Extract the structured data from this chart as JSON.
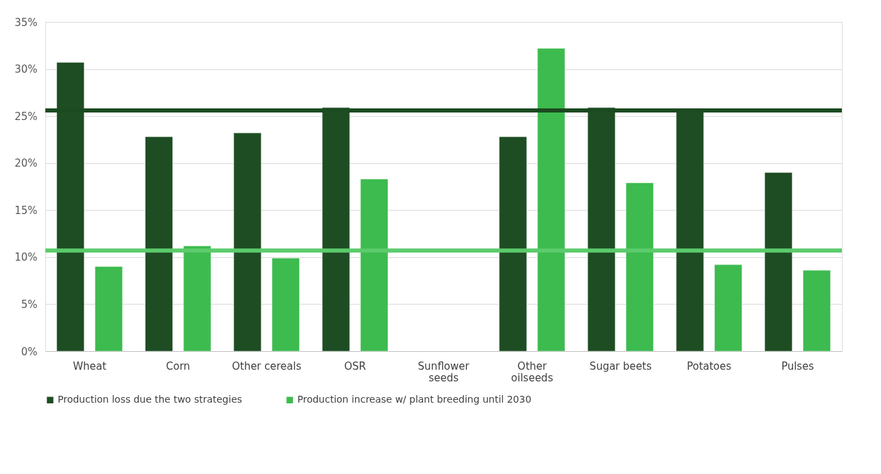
{
  "chart_data": {
    "type": "bar",
    "categories": [
      "Wheat",
      "Corn",
      "Other cereals",
      "OSR",
      "Sunflower seeds",
      "Other oilseeds",
      "Sugar beets",
      "Potatoes",
      "Pulses"
    ],
    "series": [
      {
        "name": "Production loss due the two strategies",
        "color": "#1e4d23",
        "values": [
          30.7,
          22.8,
          23.2,
          25.9,
          null,
          22.8,
          25.9,
          25.5,
          19.0
        ]
      },
      {
        "name": "Production increase w/ plant breeding until 2030",
        "color": "#3dbb4f",
        "values": [
          9.0,
          11.2,
          9.9,
          18.3,
          null,
          32.2,
          17.9,
          9.2,
          8.6
        ]
      }
    ],
    "ylim": [
      0,
      35
    ],
    "yticks": [
      {
        "value": 0,
        "label": "0%"
      },
      {
        "value": 5,
        "label": "5%"
      },
      {
        "value": 10,
        "label": "10%"
      },
      {
        "value": 15,
        "label": "15%"
      },
      {
        "value": 20,
        "label": "20%"
      },
      {
        "value": 25,
        "label": "25%"
      },
      {
        "value": 30,
        "label": "30%"
      },
      {
        "value": 35,
        "label": "35%"
      }
    ],
    "ref_lines": [
      {
        "axis": "y",
        "value": 25.6,
        "color": "#1b4a20"
      },
      {
        "axis": "y",
        "value": 10.7,
        "color": "#5ccb6c"
      }
    ],
    "grid": "y",
    "legend": "bottom"
  }
}
